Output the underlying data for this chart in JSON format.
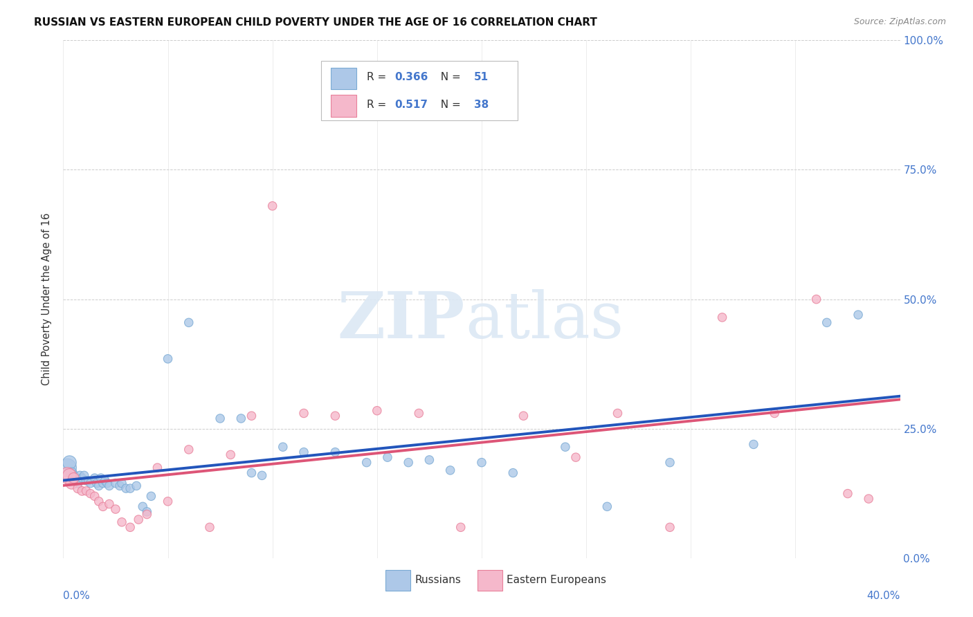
{
  "title": "RUSSIAN VS EASTERN EUROPEAN CHILD POVERTY UNDER THE AGE OF 16 CORRELATION CHART",
  "source": "Source: ZipAtlas.com",
  "xlim": [
    0.0,
    0.4
  ],
  "ylim": [
    0.0,
    1.0
  ],
  "ylabel": "Child Poverty Under the Age of 16",
  "russian_color": "#adc8e8",
  "russian_edge": "#7aaad4",
  "eastern_color": "#f5b8cb",
  "eastern_edge": "#e8809a",
  "russian_trend_color": "#2255bb",
  "eastern_trend_color": "#dd5577",
  "watermark_zip": "ZIP",
  "watermark_atlas": "atlas",
  "r_russian": "0.366",
  "n_russian": "51",
  "r_eastern": "0.517",
  "n_eastern": "38",
  "russians_x": [
    0.002,
    0.003,
    0.004,
    0.005,
    0.006,
    0.007,
    0.008,
    0.009,
    0.01,
    0.011,
    0.012,
    0.013,
    0.015,
    0.016,
    0.017,
    0.018,
    0.019,
    0.02,
    0.021,
    0.022,
    0.025,
    0.027,
    0.028,
    0.03,
    0.032,
    0.035,
    0.038,
    0.04,
    0.042,
    0.05,
    0.06,
    0.075,
    0.085,
    0.09,
    0.095,
    0.105,
    0.115,
    0.13,
    0.145,
    0.155,
    0.165,
    0.175,
    0.185,
    0.2,
    0.215,
    0.24,
    0.26,
    0.29,
    0.33,
    0.365,
    0.38
  ],
  "russians_y": [
    0.175,
    0.185,
    0.165,
    0.16,
    0.155,
    0.145,
    0.16,
    0.155,
    0.16,
    0.15,
    0.15,
    0.145,
    0.155,
    0.145,
    0.14,
    0.155,
    0.145,
    0.15,
    0.145,
    0.14,
    0.145,
    0.14,
    0.145,
    0.135,
    0.135,
    0.14,
    0.1,
    0.09,
    0.12,
    0.385,
    0.455,
    0.27,
    0.27,
    0.165,
    0.16,
    0.215,
    0.205,
    0.205,
    0.185,
    0.195,
    0.185,
    0.19,
    0.17,
    0.185,
    0.165,
    0.215,
    0.1,
    0.185,
    0.22,
    0.455,
    0.47
  ],
  "russians_size": [
    350,
    200,
    120,
    100,
    90,
    85,
    80,
    80,
    80,
    80,
    80,
    80,
    80,
    80,
    80,
    80,
    80,
    80,
    80,
    80,
    80,
    80,
    80,
    80,
    80,
    80,
    80,
    80,
    80,
    80,
    80,
    80,
    80,
    80,
    80,
    80,
    80,
    80,
    80,
    80,
    80,
    80,
    80,
    80,
    80,
    80,
    80,
    80,
    80,
    80,
    80
  ],
  "easterns_x": [
    0.002,
    0.003,
    0.004,
    0.005,
    0.007,
    0.009,
    0.011,
    0.013,
    0.015,
    0.017,
    0.019,
    0.022,
    0.025,
    0.028,
    0.032,
    0.036,
    0.04,
    0.045,
    0.05,
    0.06,
    0.07,
    0.08,
    0.09,
    0.1,
    0.115,
    0.13,
    0.15,
    0.17,
    0.19,
    0.22,
    0.245,
    0.265,
    0.29,
    0.315,
    0.34,
    0.36,
    0.375,
    0.385
  ],
  "easterns_y": [
    0.16,
    0.16,
    0.145,
    0.155,
    0.135,
    0.13,
    0.13,
    0.125,
    0.12,
    0.11,
    0.1,
    0.105,
    0.095,
    0.07,
    0.06,
    0.075,
    0.085,
    0.175,
    0.11,
    0.21,
    0.06,
    0.2,
    0.275,
    0.68,
    0.28,
    0.275,
    0.285,
    0.28,
    0.06,
    0.275,
    0.195,
    0.28,
    0.06,
    0.465,
    0.28,
    0.5,
    0.125,
    0.115
  ],
  "easterns_size": [
    280,
    200,
    150,
    120,
    90,
    85,
    80,
    80,
    80,
    80,
    80,
    80,
    80,
    80,
    80,
    80,
    80,
    80,
    80,
    80,
    80,
    80,
    80,
    80,
    80,
    80,
    80,
    80,
    80,
    80,
    80,
    80,
    80,
    80,
    80,
    80,
    80,
    80
  ]
}
